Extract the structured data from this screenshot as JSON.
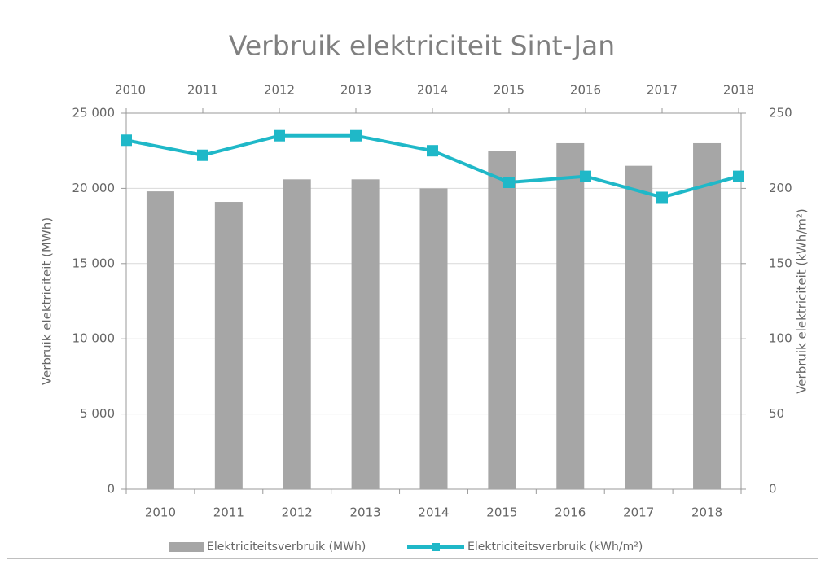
{
  "chart_data": {
    "type": "bar-line",
    "title": "Verbruik elektriciteit  Sint-Jan",
    "categories": [
      "2010",
      "2011",
      "2012",
      "2013",
      "2014",
      "2015",
      "2016",
      "2017",
      "2018"
    ],
    "y_label": "Verbruik elektriciteit  (MWh)",
    "y2_label": "Verbruik elektriciteit  (kWh/m²)",
    "series": [
      {
        "name": "Elektriciteitsverbruik (MWh)",
        "type": "bar",
        "color": "#a6a6a6",
        "values": [
          19800,
          19100,
          20600,
          20600,
          20000,
          22500,
          23000,
          21500,
          23000
        ]
      },
      {
        "name": "Elektriciteitsverbruik (kWh/m²)",
        "type": "line",
        "axis": "y2",
        "color": "#1fb8c8",
        "values": [
          232,
          222,
          235,
          235,
          225,
          204,
          208,
          194,
          208
        ]
      }
    ],
    "ylim": [
      0,
      25000
    ],
    "yticks": [
      0,
      {
        "value": 5000,
        "label": "5 000"
      },
      {
        "value": 10000,
        "label": "10 000"
      },
      {
        "value": 15000,
        "label": "15 000"
      },
      {
        "value": 20000,
        "label": "20 000"
      },
      {
        "value": 25000,
        "label": "25 000"
      }
    ],
    "y2lim": [
      0,
      250
    ],
    "y2ticks": [
      0,
      50,
      100,
      150,
      200,
      250
    ],
    "grid": true,
    "legend": "bottom"
  }
}
